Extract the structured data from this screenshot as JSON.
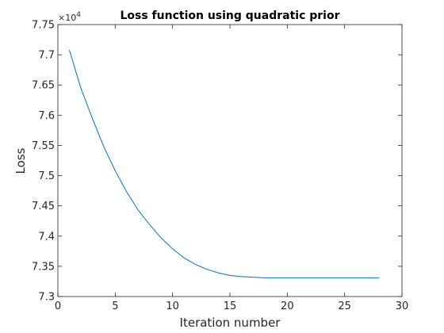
{
  "chart_data": {
    "type": "line",
    "title": "Loss function using quadratic prior",
    "xlabel": "Iteration number",
    "ylabel": "Loss",
    "xlim": [
      0,
      30
    ],
    "ylim": [
      73000,
      77500
    ],
    "x_ticks": [
      "0",
      "5",
      "10",
      "15",
      "20",
      "25",
      "30"
    ],
    "y_ticks": [
      "7.3",
      "7.35",
      "7.4",
      "7.45",
      "7.5",
      "7.55",
      "7.6",
      "7.65",
      "7.7",
      "7.75"
    ],
    "y_exponent_label": "×10",
    "y_exponent_power": "4",
    "grid": false,
    "box": true,
    "series": [
      {
        "color": "#0072BD",
        "x": [
          1,
          2,
          3,
          4,
          5,
          6,
          7,
          8,
          9,
          10,
          11,
          12,
          13,
          14,
          15,
          16,
          17,
          18,
          19,
          20,
          21,
          22,
          23,
          24,
          25,
          26,
          27,
          28
        ],
        "y": [
          77080,
          76450,
          75950,
          75480,
          75080,
          74730,
          74430,
          74190,
          73970,
          73790,
          73640,
          73530,
          73450,
          73390,
          73350,
          73330,
          73320,
          73310,
          73310,
          73310,
          73310,
          73310,
          73310,
          73310,
          73310,
          73310,
          73310,
          73310
        ]
      }
    ]
  }
}
